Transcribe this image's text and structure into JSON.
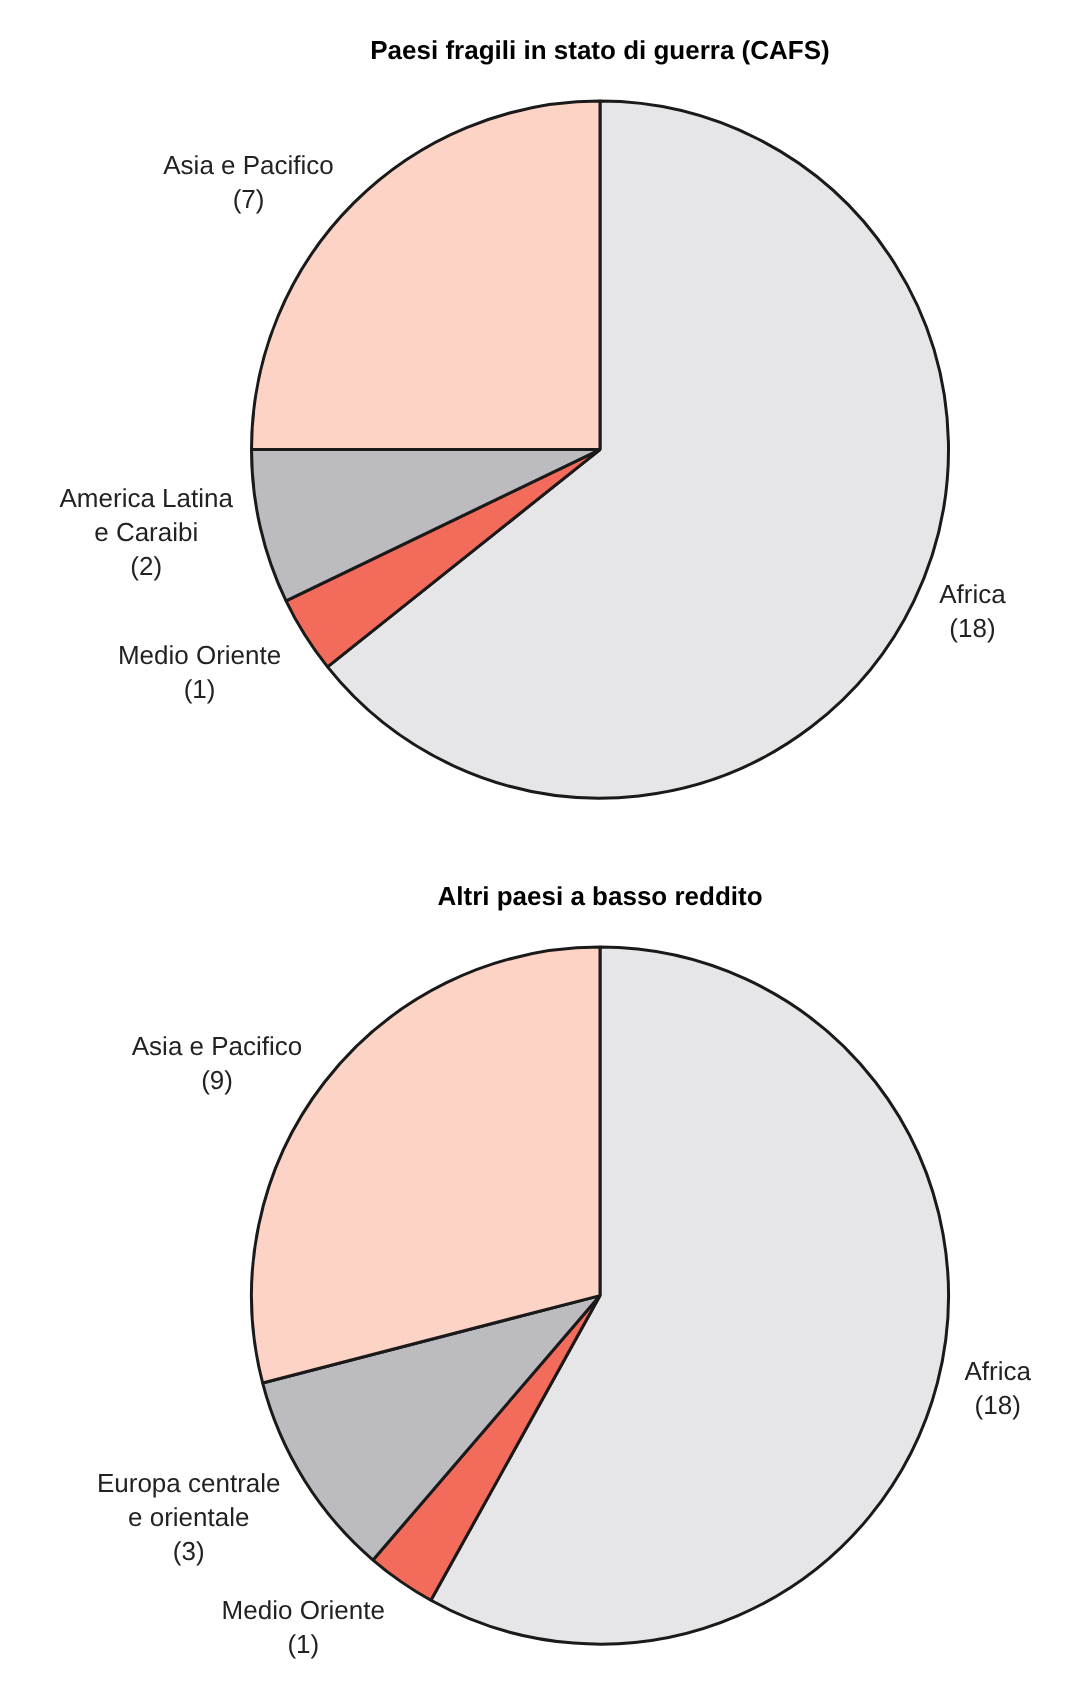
{
  "chart_data": [
    {
      "type": "pie",
      "title": "Paesi fragili in stato di guerra (CAFS)",
      "categories": [
        "Africa",
        "Medio Oriente",
        "America Latina e Caraibi",
        "Asia e Pacifico"
      ],
      "values": [
        18,
        1,
        2,
        7
      ],
      "value_labels": [
        "(18)",
        "(1)",
        "(2)",
        "(7)"
      ],
      "colors": [
        "#e6e6e8",
        "#f26b5b",
        "#bcbcc0",
        "#fcd3c5"
      ],
      "legend": false
    },
    {
      "type": "pie",
      "title": "Altri paesi a basso reddito",
      "categories": [
        "Africa",
        "Medio Oriente",
        "Europa centrale e orientale",
        "Asia e Pacifico"
      ],
      "values": [
        18,
        1,
        3,
        9
      ],
      "value_labels": [
        "(18)",
        "(1)",
        "(3)",
        "(9)"
      ],
      "colors": [
        "#e6e6e8",
        "#f26b5b",
        "#bcbcc0",
        "#fcd3c5"
      ],
      "legend": false
    }
  ]
}
